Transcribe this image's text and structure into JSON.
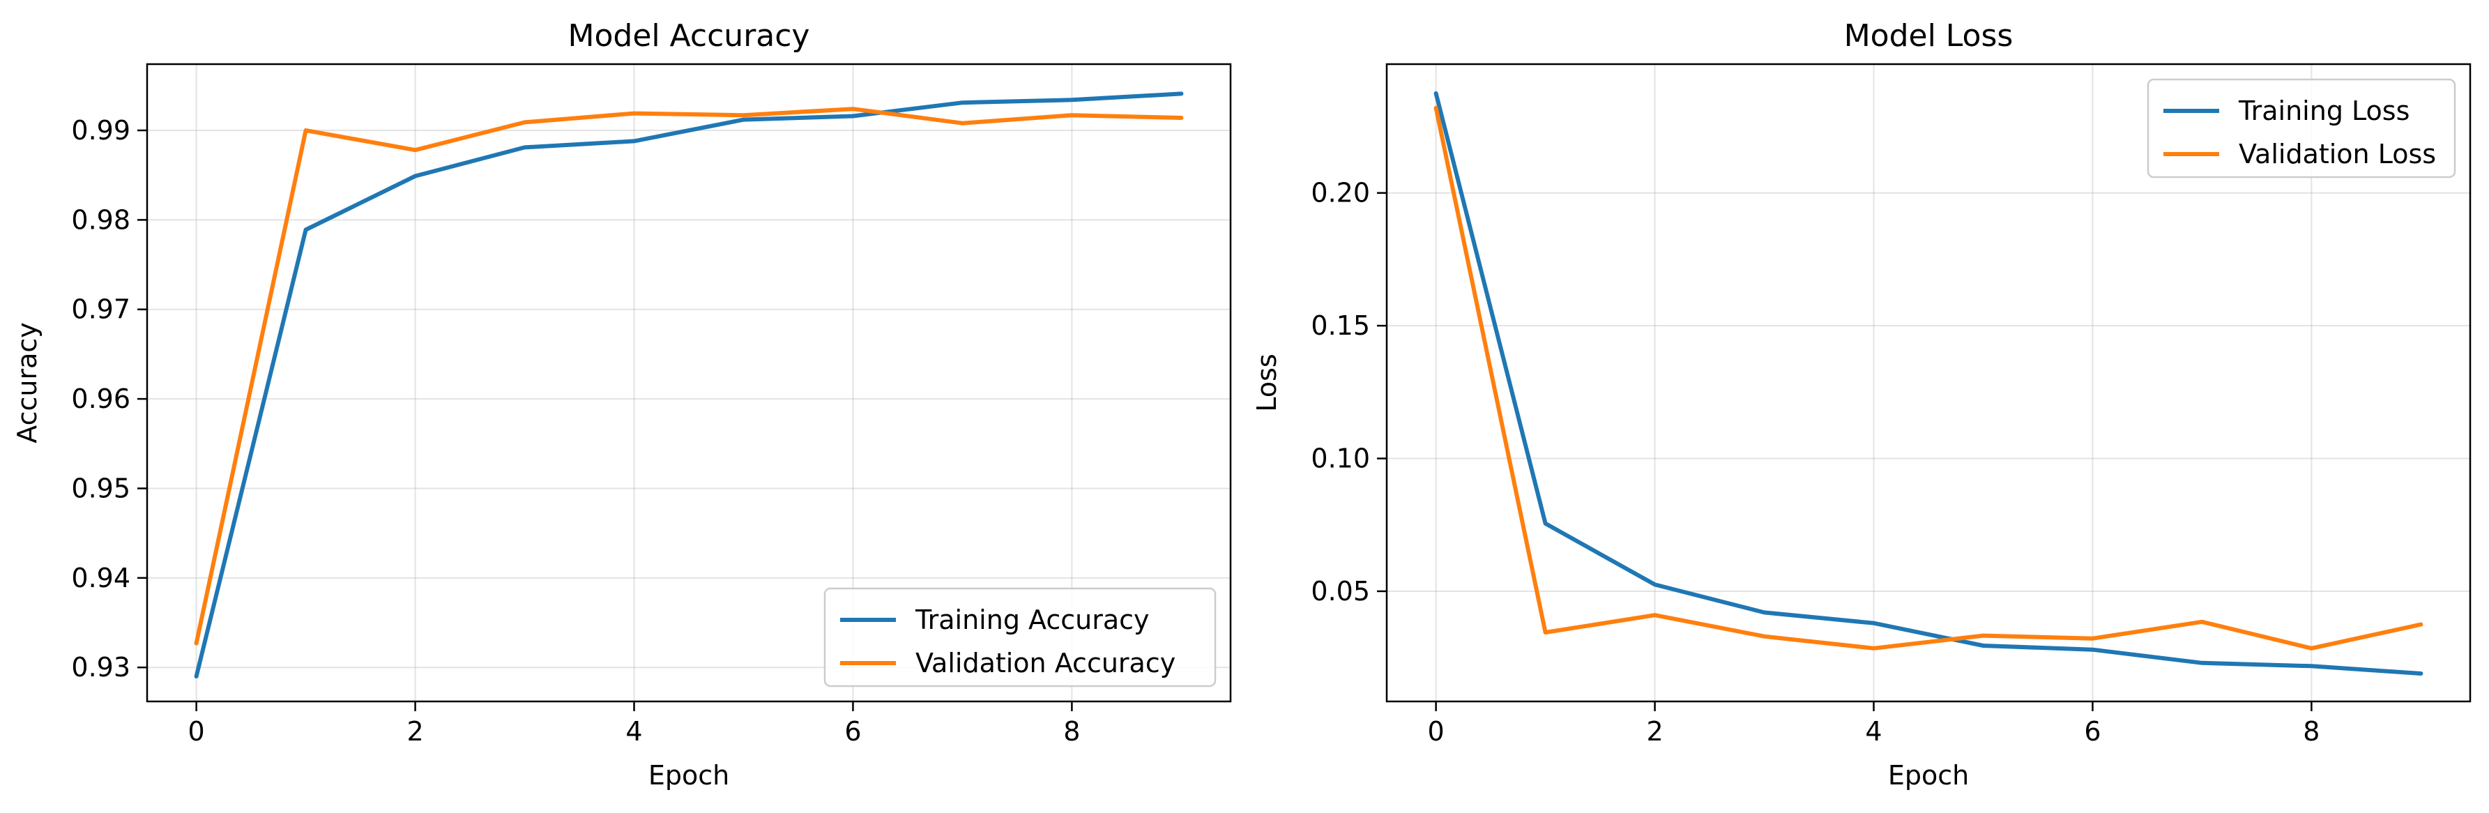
{
  "chart_data": [
    {
      "type": "line",
      "title": "Model Accuracy",
      "xlabel": "Epoch",
      "ylabel": "Accuracy",
      "xlim": [
        -0.45,
        9.45
      ],
      "ylim": [
        0.9262,
        0.9974
      ],
      "xticks": [
        0,
        2,
        4,
        6,
        8
      ],
      "xtick_labels": [
        "0",
        "2",
        "4",
        "6",
        "8"
      ],
      "yticks": [
        0.93,
        0.94,
        0.95,
        0.96,
        0.97,
        0.98,
        0.99
      ],
      "ytick_labels": [
        "0.93",
        "0.94",
        "0.95",
        "0.96",
        "0.97",
        "0.98",
        "0.99"
      ],
      "grid": true,
      "legend_position": "lower-right",
      "x": [
        0,
        1,
        2,
        3,
        4,
        5,
        6,
        7,
        8,
        9
      ],
      "series": [
        {
          "name": "Training Accuracy",
          "color": "#1f77b4",
          "values": [
            0.929,
            0.9789,
            0.9849,
            0.9881,
            0.9888,
            0.9912,
            0.9916,
            0.9931,
            0.9934,
            0.9941
          ]
        },
        {
          "name": "Validation Accuracy",
          "color": "#ff7f0e",
          "values": [
            0.9327,
            0.99,
            0.9878,
            0.9909,
            0.9919,
            0.9917,
            0.9924,
            0.9908,
            0.9917,
            0.9914
          ]
        }
      ]
    },
    {
      "type": "line",
      "title": "Model Loss",
      "xlabel": "Epoch",
      "ylabel": "Loss",
      "xlim": [
        -0.45,
        9.45
      ],
      "ylim": [
        0.0085,
        0.2485
      ],
      "xticks": [
        0,
        2,
        4,
        6,
        8
      ],
      "xtick_labels": [
        "0",
        "2",
        "4",
        "6",
        "8"
      ],
      "yticks": [
        0.05,
        0.1,
        0.15,
        0.2
      ],
      "ytick_labels": [
        "0.05",
        "0.10",
        "0.15",
        "0.20"
      ],
      "grid": true,
      "legend_position": "upper-right",
      "x": [
        0,
        1,
        2,
        3,
        4,
        5,
        6,
        7,
        8,
        9
      ],
      "series": [
        {
          "name": "Training Loss",
          "color": "#1f77b4",
          "values": [
            0.2375,
            0.0755,
            0.0525,
            0.042,
            0.038,
            0.0295,
            0.028,
            0.023,
            0.0218,
            0.019
          ]
        },
        {
          "name": "Validation Loss",
          "color": "#ff7f0e",
          "values": [
            0.232,
            0.0345,
            0.041,
            0.033,
            0.0285,
            0.0333,
            0.0322,
            0.0385,
            0.0285,
            0.0375
          ]
        }
      ]
    }
  ]
}
